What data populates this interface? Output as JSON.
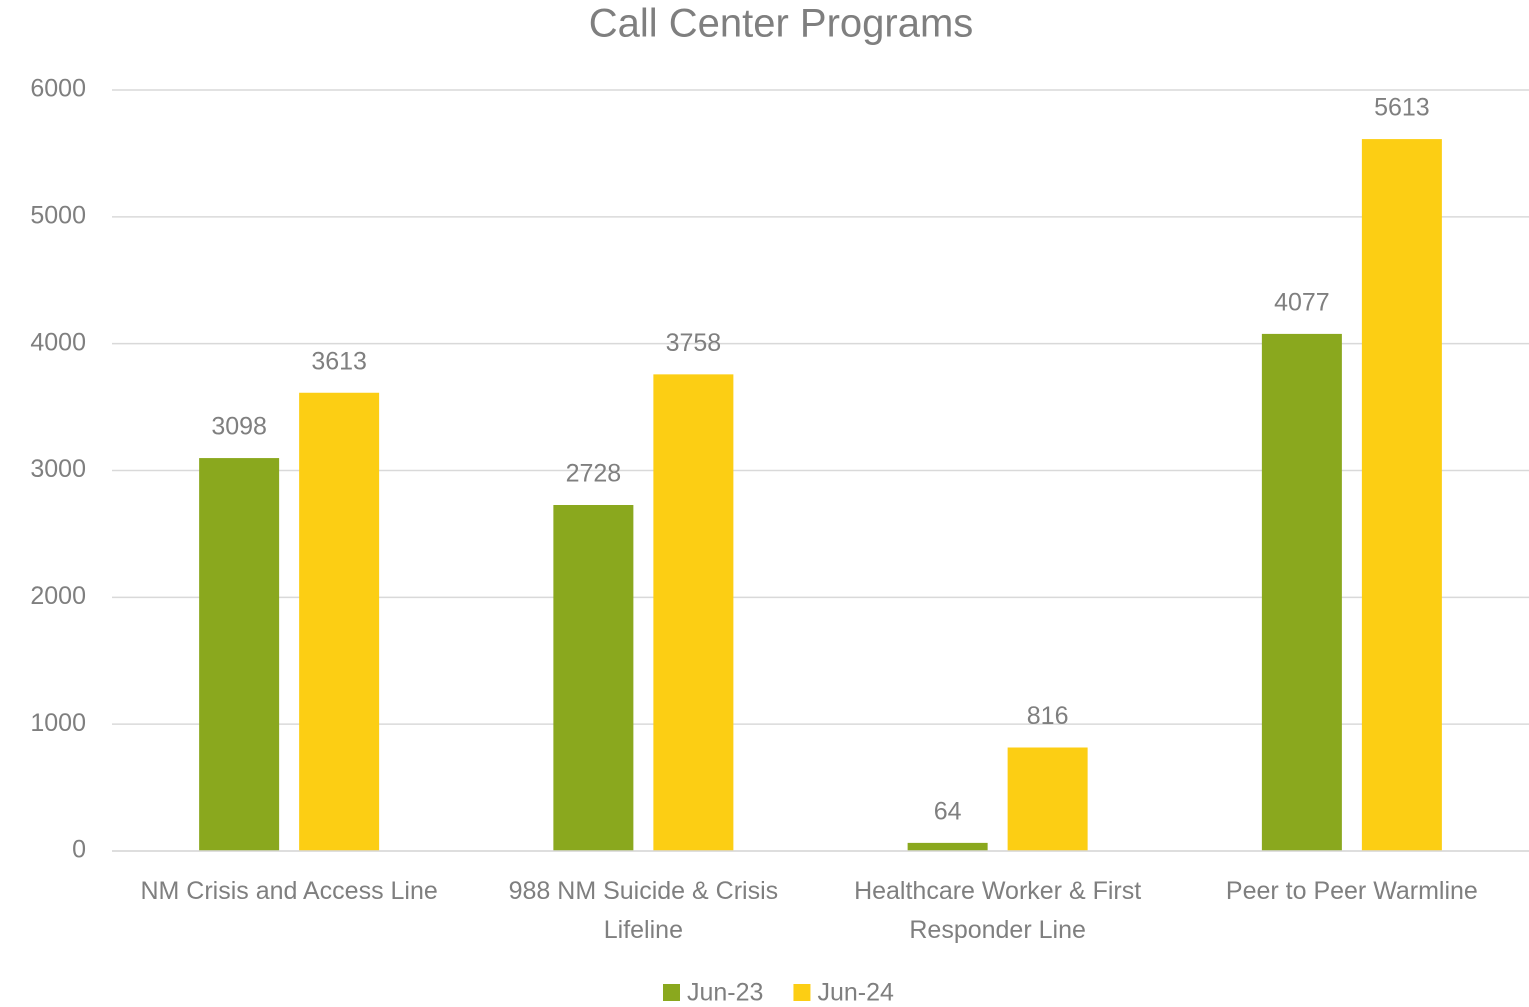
{
  "chart_data": {
    "type": "bar",
    "title": "Call Center Programs",
    "categories": [
      "NM Crisis and Access Line",
      "988 NM Suicide & Crisis Lifeline",
      "Healthcare Worker & First Responder Line",
      "Peer to Peer Warmline"
    ],
    "series": [
      {
        "name": "Jun-23",
        "color": "#8aa81e",
        "values": [
          3098,
          2728,
          64,
          4077
        ]
      },
      {
        "name": "Jun-24",
        "color": "#fcce14",
        "values": [
          3613,
          3758,
          816,
          5613
        ]
      }
    ],
    "ylim": [
      0,
      6000
    ],
    "yticks": [
      0,
      1000,
      2000,
      3000,
      4000,
      5000,
      6000
    ],
    "grid": true,
    "legend": "bottom"
  }
}
